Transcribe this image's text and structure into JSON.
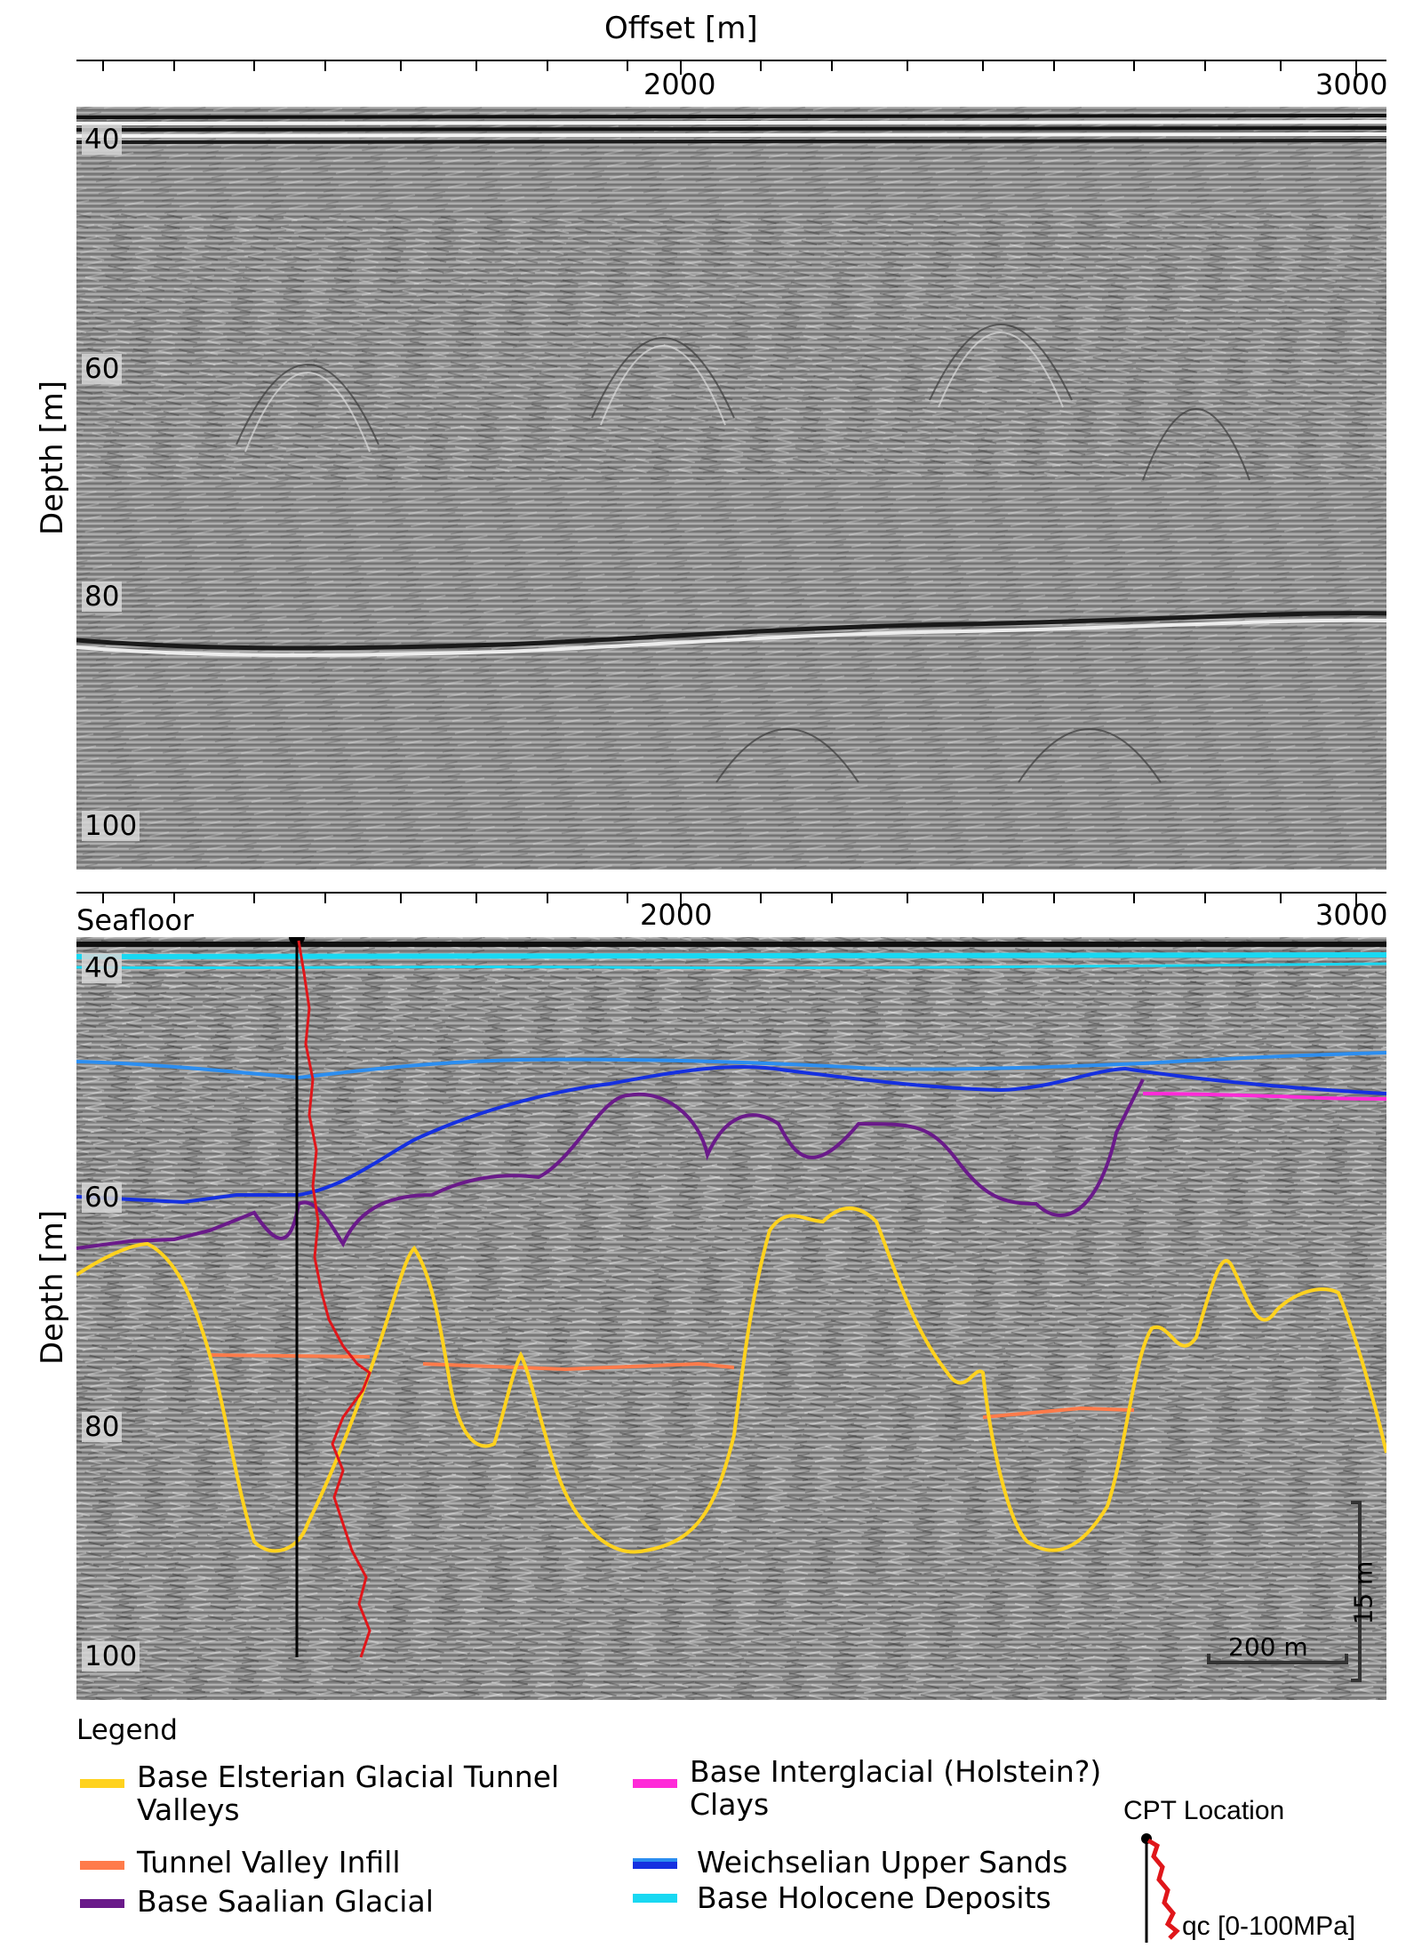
{
  "axes": {
    "x_title": "Offset [m]",
    "y_title_top": "Depth [m]",
    "y_title_bottom": "Depth [m]",
    "x_ticks": [
      "2000",
      "3000"
    ],
    "y_ticks": [
      "40",
      "60",
      "80",
      "100"
    ]
  },
  "labels": {
    "seafloor": "Seafloor",
    "scale_vertical": "15 m",
    "scale_horizontal": "200 m"
  },
  "legend": {
    "title": "Legend",
    "items": [
      {
        "label_line1": "Base Elsterian Glacial Tunnel",
        "label_line2": "Valleys",
        "color": "#ffd21e"
      },
      {
        "label_line1": "Tunnel Valley Infill",
        "label_line2": "",
        "color": "#ff7b4a"
      },
      {
        "label_line1": "Base Saalian Glacial",
        "label_line2": "",
        "color": "#6a1a8a"
      },
      {
        "label_line1": "Base Interglacial (Holstein?)",
        "label_line2": "Clays",
        "color": "#ff2ad8"
      },
      {
        "label_line1": "Weichselian Upper Sands",
        "label_line2": "",
        "color": "#1530e0"
      },
      {
        "label_line1": "Base Holocene Deposits",
        "label_line2": "",
        "color": "#19d8f2"
      }
    ],
    "cpt_title": "CPT Location",
    "cpt_label": "qc [0-100MPa]",
    "cpt_color": "#e0161a"
  }
}
